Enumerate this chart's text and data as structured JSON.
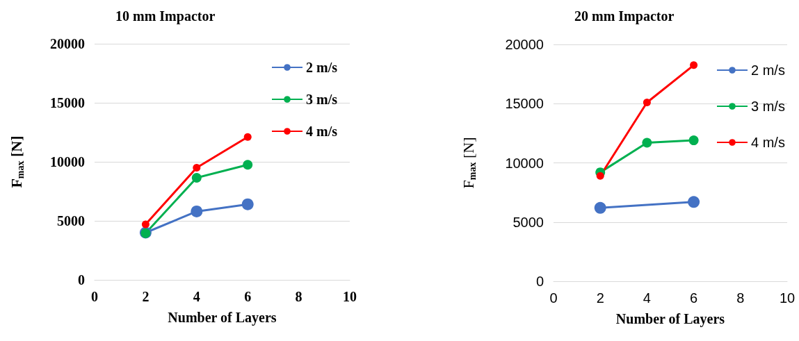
{
  "chart_data": [
    {
      "type": "line",
      "title": "10 mm Impactor",
      "xlabel": "Number of Layers",
      "ylabel": "F$_{max}$ [N]",
      "xlim": [
        0,
        10
      ],
      "xticks": [
        0,
        2,
        4,
        6,
        8,
        10
      ],
      "ylim": [
        0,
        20000
      ],
      "yticks": [
        0,
        5000,
        10000,
        15000,
        20000
      ],
      "grid": "y",
      "legend": "top right",
      "marker": "circle",
      "line_style": "solid",
      "series": [
        {
          "name": "2 m/s",
          "color": "#4472c4",
          "x": [
            2,
            4,
            6
          ],
          "values": [
            4000,
            5800,
            6400
          ]
        },
        {
          "name": "3 m/s",
          "color": "#00b050",
          "x": [
            2,
            4,
            6
          ],
          "values": [
            3950,
            8650,
            9750
          ]
        },
        {
          "name": "4 m/s",
          "color": "#ff0000",
          "x": [
            2,
            4,
            6
          ],
          "values": [
            4700,
            9500,
            12100
          ]
        }
      ]
    },
    {
      "type": "line",
      "title": "20 mm Impactor",
      "xlabel": "Number of Layers",
      "ylabel": "F$_{max}$ [N]",
      "xlim": [
        0,
        10
      ],
      "xticks": [
        0,
        2,
        4,
        6,
        8,
        10
      ],
      "ylim": [
        0,
        20000
      ],
      "yticks": [
        0,
        5000,
        10000,
        15000,
        20000
      ],
      "grid": "y",
      "legend": "top right",
      "marker": "circle",
      "line_style": "solid",
      "series": [
        {
          "name": "2 m/s",
          "color": "#4472c4",
          "x": [
            2,
            6
          ],
          "values": [
            6200,
            6700
          ]
        },
        {
          "name": "3 m/s",
          "color": "#00b050",
          "x": [
            2,
            4,
            6
          ],
          "values": [
            9200,
            11700,
            11900
          ]
        },
        {
          "name": "4 m/s",
          "color": "#ff0000",
          "x": [
            2,
            4,
            6
          ],
          "values": [
            8900,
            15100,
            18250
          ]
        }
      ]
    }
  ]
}
